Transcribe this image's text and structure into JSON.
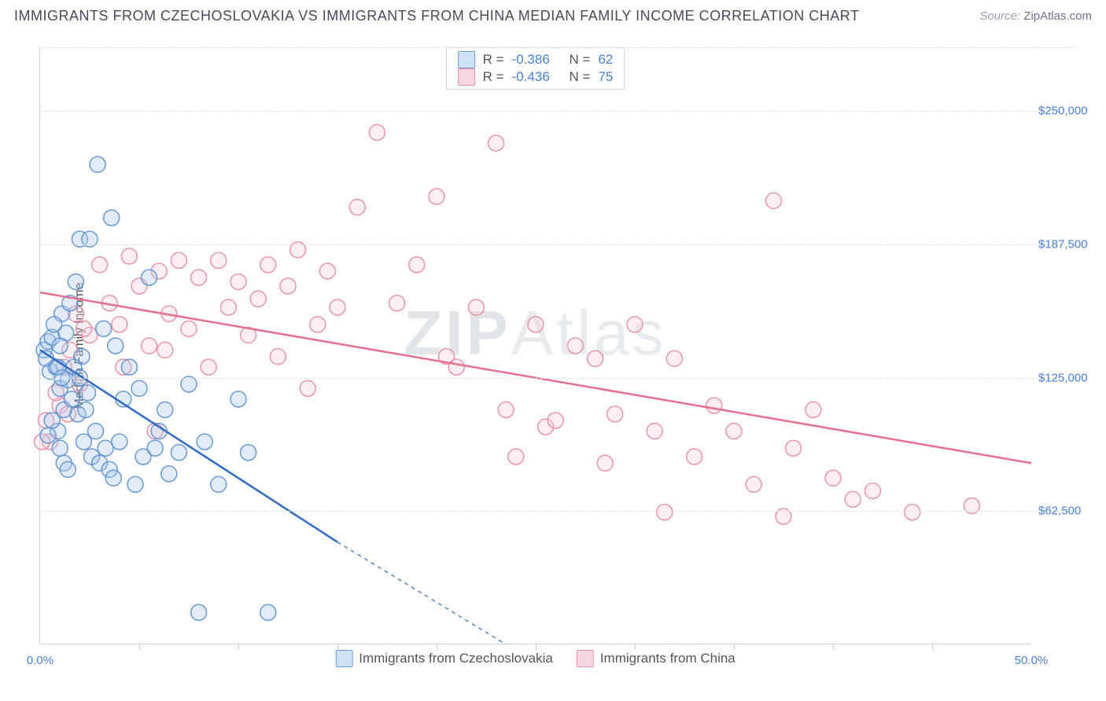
{
  "title": "IMMIGRANTS FROM CZECHOSLOVAKIA VS IMMIGRANTS FROM CHINA MEDIAN FAMILY INCOME CORRELATION CHART",
  "source_prefix": "Source: ",
  "source_link": "ZipAtlas.com",
  "watermark": {
    "a": "ZIP",
    "b": "Atlas"
  },
  "yaxis_title": "Median Family Income",
  "chart": {
    "type": "scatter-with-regression",
    "background_color": "#ffffff",
    "grid_color": "#dfe3e7",
    "axis_color": "#d0d4d8",
    "tick_label_color": "#4a7fd8",
    "title_color": "#444c55",
    "title_fontsize": 18,
    "label_fontsize": 16,
    "tick_fontsize": 15,
    "xlim": [
      0,
      50
    ],
    "ylim": [
      0,
      280000
    ],
    "x_ticks_major": [
      0,
      50
    ],
    "x_tick_labels": [
      "0.0%",
      "50.0%"
    ],
    "x_tick_minor_step": 5,
    "y_ticks": [
      62500,
      125000,
      187500,
      250000
    ],
    "y_tick_labels": [
      "$62,500",
      "$125,000",
      "$187,500",
      "$250,000"
    ],
    "marker_radius": 10,
    "marker_stroke_width": 1.5,
    "line_width_solid": 2.5,
    "line_width_dashed": 1.2,
    "dash_pattern": "5,5"
  },
  "series": {
    "czech": {
      "label": "Immigrants from Czechoslovakia",
      "fill": "#a8c9ec",
      "stroke": "#5b8fd0",
      "line_color": "#2f6bc2",
      "r_label": "R = ",
      "r_value": "-0.386",
      "n_label": "N = ",
      "n_value": "62",
      "regression": {
        "x1": 0,
        "y1": 138000,
        "x2_solid": 15,
        "y2_solid": 48000,
        "x2_dash": 23.5,
        "y2_dash": 0
      },
      "points": [
        [
          0.2,
          138000
        ],
        [
          0.3,
          134000
        ],
        [
          0.4,
          142000
        ],
        [
          0.5,
          128000
        ],
        [
          0.6,
          144000
        ],
        [
          0.8,
          130000
        ],
        [
          1.0,
          120000
        ],
        [
          1.1,
          155000
        ],
        [
          1.2,
          110000
        ],
        [
          1.3,
          146000
        ],
        [
          1.4,
          124000
        ],
        [
          1.5,
          160000
        ],
        [
          1.6,
          115000
        ],
        [
          1.8,
          170000
        ],
        [
          1.9,
          108000
        ],
        [
          2.0,
          190000
        ],
        [
          2.1,
          135000
        ],
        [
          2.2,
          95000
        ],
        [
          2.4,
          118000
        ],
        [
          2.5,
          190000
        ],
        [
          2.6,
          88000
        ],
        [
          2.8,
          100000
        ],
        [
          2.9,
          225000
        ],
        [
          3.0,
          85000
        ],
        [
          3.2,
          148000
        ],
        [
          3.3,
          92000
        ],
        [
          3.5,
          82000
        ],
        [
          3.6,
          200000
        ],
        [
          3.7,
          78000
        ],
        [
          3.8,
          140000
        ],
        [
          4.0,
          95000
        ],
        [
          4.2,
          115000
        ],
        [
          4.5,
          130000
        ],
        [
          4.8,
          75000
        ],
        [
          5.0,
          120000
        ],
        [
          5.2,
          88000
        ],
        [
          5.5,
          172000
        ],
        [
          5.8,
          92000
        ],
        [
          6.0,
          100000
        ],
        [
          6.3,
          110000
        ],
        [
          6.5,
          80000
        ],
        [
          7.0,
          90000
        ],
        [
          7.5,
          122000
        ],
        [
          8.0,
          15000
        ],
        [
          8.3,
          95000
        ],
        [
          9.0,
          75000
        ],
        [
          10.0,
          115000
        ],
        [
          10.5,
          90000
        ],
        [
          11.5,
          15000
        ],
        [
          0.9,
          100000
        ],
        [
          1.0,
          92000
        ],
        [
          1.2,
          85000
        ],
        [
          1.4,
          82000
        ],
        [
          0.7,
          150000
        ],
        [
          0.9,
          130000
        ],
        [
          1.1,
          125000
        ],
        [
          1.0,
          140000
        ],
        [
          1.7,
          130000
        ],
        [
          2.0,
          125000
        ],
        [
          2.3,
          110000
        ],
        [
          0.4,
          98000
        ],
        [
          0.6,
          105000
        ]
      ]
    },
    "china": {
      "label": "Immigrants from China",
      "fill": "#f7cdd9",
      "stroke": "#e78aa3",
      "line_color": "#e56f91",
      "r_label": "R = ",
      "r_value": "-0.436",
      "n_label": "N = ",
      "n_value": "75",
      "regression": {
        "x1": 0,
        "y1": 165000,
        "x2_solid": 50,
        "y2_solid": 85000,
        "x2_dash": 50,
        "y2_dash": 85000
      },
      "points": [
        [
          0.3,
          105000
        ],
        [
          0.5,
          95000
        ],
        [
          1.0,
          112000
        ],
        [
          1.5,
          138000
        ],
        [
          1.8,
          155000
        ],
        [
          2.0,
          122000
        ],
        [
          2.5,
          145000
        ],
        [
          3.0,
          178000
        ],
        [
          3.5,
          160000
        ],
        [
          4.0,
          150000
        ],
        [
          4.5,
          182000
        ],
        [
          5.0,
          168000
        ],
        [
          5.5,
          140000
        ],
        [
          6.0,
          175000
        ],
        [
          6.5,
          155000
        ],
        [
          7.0,
          180000
        ],
        [
          7.5,
          148000
        ],
        [
          8.0,
          172000
        ],
        [
          8.5,
          130000
        ],
        [
          9.0,
          180000
        ],
        [
          9.5,
          158000
        ],
        [
          10.0,
          170000
        ],
        [
          10.5,
          145000
        ],
        [
          11.0,
          162000
        ],
        [
          11.5,
          178000
        ],
        [
          12.0,
          135000
        ],
        [
          12.5,
          168000
        ],
        [
          13.0,
          185000
        ],
        [
          13.5,
          120000
        ],
        [
          14.0,
          150000
        ],
        [
          14.5,
          175000
        ],
        [
          15.0,
          158000
        ],
        [
          16.0,
          205000
        ],
        [
          17.0,
          240000
        ],
        [
          18.0,
          160000
        ],
        [
          19.0,
          178000
        ],
        [
          20.0,
          210000
        ],
        [
          20.5,
          135000
        ],
        [
          21.0,
          130000
        ],
        [
          22.0,
          158000
        ],
        [
          23.0,
          235000
        ],
        [
          23.5,
          110000
        ],
        [
          24.0,
          88000
        ],
        [
          25.0,
          150000
        ],
        [
          25.5,
          102000
        ],
        [
          26.0,
          105000
        ],
        [
          27.0,
          140000
        ],
        [
          28.0,
          134000
        ],
        [
          28.5,
          85000
        ],
        [
          29.0,
          108000
        ],
        [
          30.0,
          150000
        ],
        [
          31.0,
          100000
        ],
        [
          31.5,
          62000
        ],
        [
          32.0,
          134000
        ],
        [
          33.0,
          88000
        ],
        [
          34.0,
          112000
        ],
        [
          35.0,
          100000
        ],
        [
          36.0,
          75000
        ],
        [
          37.0,
          208000
        ],
        [
          37.5,
          60000
        ],
        [
          38.0,
          92000
        ],
        [
          39.0,
          110000
        ],
        [
          40.0,
          78000
        ],
        [
          41.0,
          68000
        ],
        [
          42.0,
          72000
        ],
        [
          44.0,
          62000
        ],
        [
          47.0,
          65000
        ],
        [
          5.8,
          100000
        ],
        [
          1.2,
          130000
        ],
        [
          2.2,
          148000
        ],
        [
          4.2,
          130000
        ],
        [
          6.3,
          138000
        ],
        [
          0.1,
          95000
        ],
        [
          0.8,
          118000
        ],
        [
          1.4,
          108000
        ]
      ]
    }
  }
}
